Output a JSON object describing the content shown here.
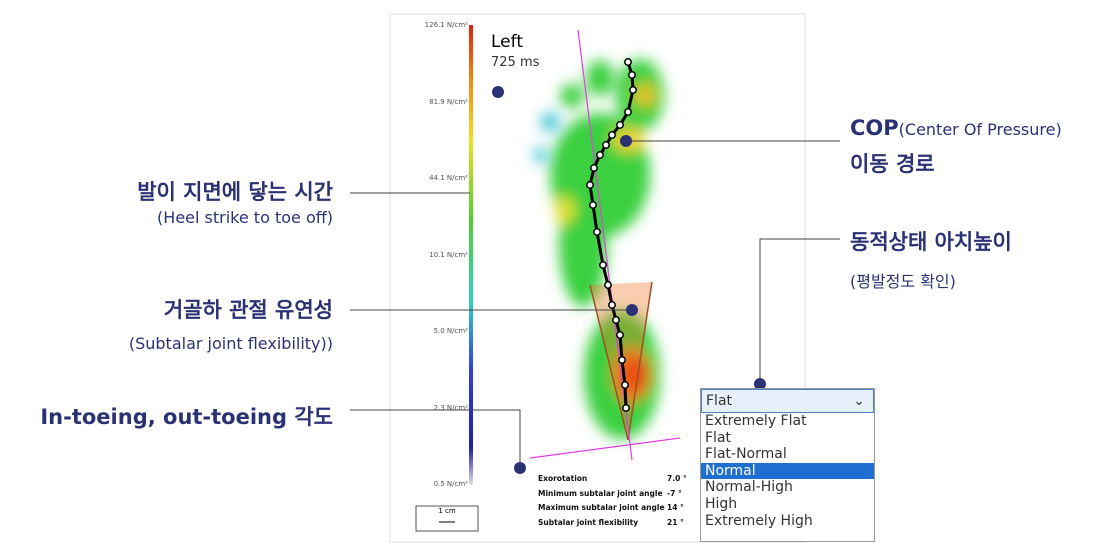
{
  "scale_labels": [
    "126.1 N/cm²",
    "81.9 N/cm²",
    "44.1 N/cm²",
    "10.1 N/cm²",
    "5.0 N/cm²",
    "2.3 N/cm²",
    "0.5 N/cm²"
  ],
  "side": "Left",
  "duration": "725 ms",
  "scale_bar": "1 cm",
  "results": [
    {
      "label": "Exorotation",
      "value": "7.0 °"
    },
    {
      "label": "Minimum subtalar joint angle",
      "value": "-7 °"
    },
    {
      "label": "Maximum subtalar joint angle",
      "value": "14 °"
    },
    {
      "label": "Subtalar joint flexibility",
      "value": "21 °"
    }
  ],
  "dropdown": {
    "selected": "Flat",
    "options": [
      "Extremely Flat",
      "Flat",
      "Flat-Normal",
      "Normal",
      "Normal-High",
      "High",
      "Extremely High"
    ],
    "highlighted": 3
  },
  "annotations": {
    "cop": {
      "title": "COP",
      "title_note": "(Center Of Pressure)",
      "line2": "이동 경로"
    },
    "contact_time": {
      "title": "발이 지면에 닿는 시간",
      "subtitle": "(Heel strike to toe off)"
    },
    "arch": {
      "title": "동적상태 아치높이",
      "subtitle": "(평발정도 확인)"
    },
    "subtalar": {
      "title": "거골하 관절 유연성",
      "subtitle": "(Subtalar joint flexibility))"
    },
    "toeing": {
      "title": "In-toeing, out-toeing 각도"
    }
  }
}
